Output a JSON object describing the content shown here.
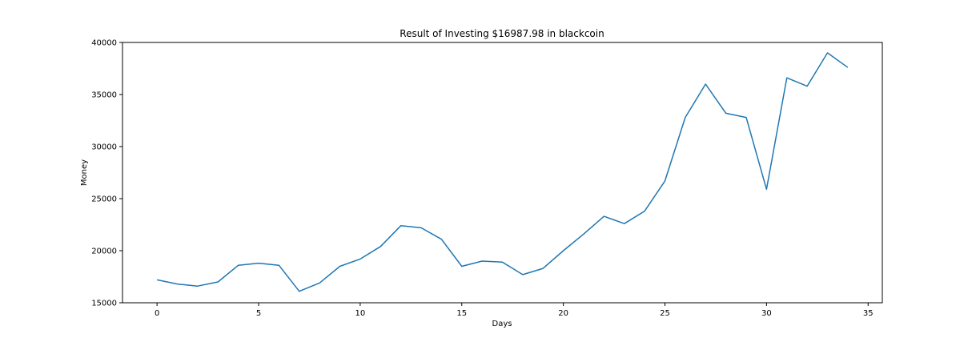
{
  "chart_data": {
    "type": "line",
    "title": "Result of Investing $16987.98 in blackcoin",
    "xlabel": "Days",
    "ylabel": "Money",
    "xlim": [
      -1.7,
      35.7
    ],
    "ylim": [
      15000,
      40000
    ],
    "xticks": [
      0,
      5,
      10,
      15,
      20,
      25,
      30,
      35
    ],
    "yticks": [
      15000,
      20000,
      25000,
      30000,
      35000,
      40000
    ],
    "grid": false,
    "series": [
      {
        "color": "#1f77b4",
        "x": [
          0,
          1,
          2,
          3,
          4,
          5,
          6,
          7,
          8,
          9,
          10,
          11,
          12,
          13,
          14,
          15,
          16,
          17,
          18,
          19,
          20,
          21,
          22,
          23,
          24,
          25,
          26,
          27,
          28,
          29,
          30,
          31,
          32,
          33,
          34
        ],
        "y": [
          17200,
          16800,
          16600,
          17000,
          18600,
          18800,
          18600,
          16100,
          16900,
          18500,
          19200,
          20400,
          22400,
          22200,
          21100,
          18500,
          19000,
          18900,
          17700,
          18300,
          20000,
          21600,
          23300,
          22600,
          23800,
          26700,
          32800,
          36000,
          33200,
          32800,
          25900,
          36600,
          35800,
          39000,
          37600
        ]
      }
    ]
  }
}
